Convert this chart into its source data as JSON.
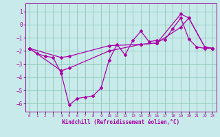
{
  "xlabel": "Windchill (Refroidissement éolien,°C)",
  "bg_color": "#c8eaea",
  "grid_color": "#90c8b8",
  "line_color": "#aa00aa",
  "spine_color": "#990099",
  "xlim": [
    -0.5,
    23.5
  ],
  "ylim": [
    -6.6,
    1.6
  ],
  "xticks": [
    0,
    1,
    2,
    3,
    4,
    5,
    6,
    7,
    8,
    9,
    10,
    11,
    12,
    13,
    14,
    15,
    16,
    17,
    18,
    19,
    20,
    21,
    22,
    23
  ],
  "yticks": [
    1,
    0,
    -1,
    -2,
    -3,
    -4,
    -5,
    -6
  ],
  "line1_x": [
    0,
    1,
    2,
    3,
    4,
    5,
    6,
    7,
    8,
    9,
    10,
    11,
    12,
    13,
    14,
    15,
    16,
    17,
    18,
    19,
    20,
    21,
    22,
    23
  ],
  "line1_y": [
    -1.8,
    -2.2,
    -2.4,
    -2.5,
    -3.7,
    -6.1,
    -5.6,
    -5.5,
    -5.4,
    -4.8,
    -2.7,
    -1.5,
    -2.3,
    -1.2,
    -0.5,
    -1.3,
    -1.2,
    -1.15,
    -0.3,
    0.5,
    -1.1,
    -1.7,
    -1.8,
    -1.8
  ],
  "line2_x": [
    0,
    4,
    5,
    10,
    14,
    16,
    19,
    20,
    22,
    23
  ],
  "line2_y": [
    -1.8,
    -3.5,
    -3.3,
    -2.0,
    -1.5,
    -1.4,
    -0.2,
    0.5,
    -1.7,
    -1.8
  ],
  "line3_x": [
    0,
    4,
    5,
    10,
    14,
    16,
    19,
    20,
    22,
    23
  ],
  "line3_y": [
    -1.8,
    -2.5,
    -2.4,
    -1.6,
    -1.5,
    -1.4,
    0.8,
    0.5,
    -1.7,
    -1.8
  ]
}
